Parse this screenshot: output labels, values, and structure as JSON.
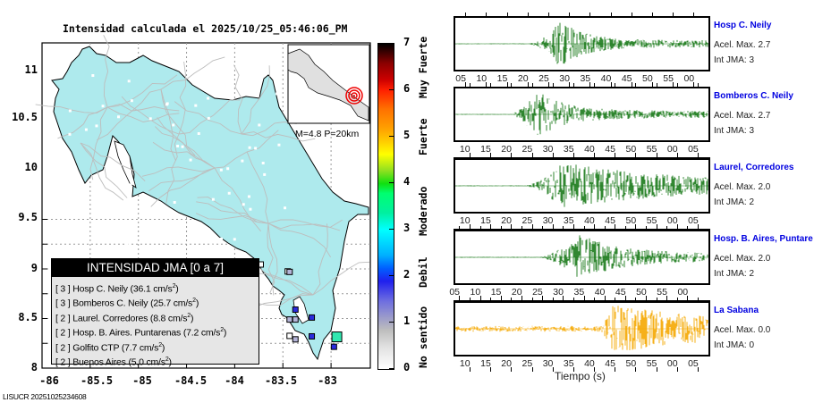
{
  "title": "Intensidad calculada el 2025/10/25_05:46:06_PM",
  "footer_id": "LISUCR 20251025234608",
  "map": {
    "y_ticks": [
      "11",
      "10.5",
      "10",
      "9.5",
      "9",
      "8.5",
      "8"
    ],
    "x_ticks": [
      "-86",
      "-85.5",
      "-85",
      "-84.5",
      "-84",
      "-83.5",
      "-83"
    ],
    "land_color": "#aeeaed",
    "inset_label": "M=4.8 P=20km",
    "stations_observed": [
      {
        "lon": -84.0,
        "lat": 10.08,
        "int": 1
      },
      {
        "lon": -83.98,
        "lat": 10.04,
        "int": 1
      },
      {
        "lon": -83.98,
        "lat": 9.97,
        "int": 0
      },
      {
        "lon": -83.95,
        "lat": 9.93,
        "int": 1
      },
      {
        "lon": -83.93,
        "lat": 9.9,
        "int": 0
      },
      {
        "lon": -83.87,
        "lat": 9.91,
        "int": 0
      },
      {
        "lon": -83.8,
        "lat": 9.96,
        "int": 0
      },
      {
        "lon": -83.78,
        "lat": 9.93,
        "int": 0
      },
      {
        "lon": -84.1,
        "lat": 9.9,
        "int": 0
      },
      {
        "lon": -83.73,
        "lat": 10.09,
        "int": 0
      },
      {
        "lon": -83.45,
        "lat": 9.95,
        "int": 0
      },
      {
        "lon": -83.43,
        "lat": 9.94,
        "int": 1
      },
      {
        "lon": -83.37,
        "lat": 9.18,
        "int": 2
      },
      {
        "lon": -83.43,
        "lat": 8.98,
        "int": 1
      },
      {
        "lon": -83.37,
        "lat": 8.98,
        "int": 1
      },
      {
        "lon": -83.2,
        "lat": 9.02,
        "int": 2
      },
      {
        "lon": -83.43,
        "lat": 8.65,
        "int": 0
      },
      {
        "lon": -83.37,
        "lat": 8.58,
        "int": 1
      },
      {
        "lon": -83.2,
        "lat": 8.64,
        "int": 2
      },
      {
        "lon": -82.97,
        "lat": 8.43,
        "int": 2
      },
      {
        "lon": -82.94,
        "lat": 8.63,
        "int": 3
      }
    ]
  },
  "legend": {
    "title": "INTENSIDAD JMA [0 a 7]",
    "items": [
      {
        "int": "[ 3 ]",
        "name": "Hosp C. Neily",
        "value": "(36.1 cm/s",
        "sup": "2",
        "close": ")"
      },
      {
        "int": "[ 3 ]",
        "name": "Bomberos C. Neily",
        "value": "(25.7 cm/s",
        "sup": "2",
        "close": ")"
      },
      {
        "int": "[ 2 ]",
        "name": "Laurel. Corredores",
        "value": "(8.8 cm/s",
        "sup": "2",
        "close": ")"
      },
      {
        "int": "[ 2 ]",
        "name": "Hosp. B. Aires. Puntarenas",
        "value": "(7.2 cm/s",
        "sup": "2",
        "close": ")"
      },
      {
        "int": "[ 2 ]",
        "name": "Golfito CTP",
        "value": "(7.7 cm/s",
        "sup": "2",
        "close": ")"
      },
      {
        "int": "[ 2 ]",
        "name": "Buenos Aires",
        "value": "(5.0 cm/s",
        "sup": "2",
        "close": ")"
      }
    ]
  },
  "colorbar": {
    "ticks": [
      "0",
      "1",
      "2",
      "3",
      "4",
      "5",
      "6",
      "7"
    ],
    "labels": [
      "No sentido",
      "Debil",
      "Moderado",
      "Fuerte",
      "Muy Fuerte"
    ]
  },
  "traces": [
    {
      "name": "Hosp C. Neily",
      "acel": "Acel. Max. 2.7",
      "int": "Int JMA: 3",
      "color": "#1a7a1a",
      "ticks": [
        "05",
        "10",
        "15",
        "20",
        "25",
        "30",
        "35",
        "40",
        "45",
        "50",
        "55",
        "00"
      ],
      "t0": 3,
      "onset": 20.5,
      "peak": 28,
      "decay": 6,
      "amp": 1.0,
      "noise": 0.02
    },
    {
      "name": "Bomberos C. Neily",
      "acel": "Acel. Max. 2.7",
      "int": "Int JMA: 3",
      "color": "#1a7a1a",
      "ticks": [
        "10",
        "15",
        "20",
        "25",
        "30",
        "35",
        "40",
        "45",
        "50",
        "55",
        "00",
        "05"
      ],
      "t0": 7,
      "onset": 20,
      "peak": 26.5,
      "decay": 7,
      "amp": 1.0,
      "noise": 0.02
    },
    {
      "name": "Laurel, Corredores",
      "acel": "Acel. Max. 2.0",
      "int": "Int JMA: 2",
      "color": "#1a7a1a",
      "ticks": [
        "10",
        "15",
        "20",
        "25",
        "30",
        "35",
        "40",
        "45",
        "50",
        "55",
        "00",
        "05"
      ],
      "t0": 7,
      "onset": 23.5,
      "peak": 33,
      "decay": 25,
      "amp": 1.0,
      "noise": 0.02
    },
    {
      "name": "Hosp. B. Aires, Puntare",
      "acel": "Acel. Max. 2.0",
      "int": "Int JMA: 2",
      "color": "#1a7a1a",
      "ticks": [
        "05",
        "10",
        "15",
        "20",
        "25",
        "30",
        "35",
        "40",
        "45",
        "50",
        "55",
        "00"
      ],
      "t0": 4.5,
      "onset": 24.5,
      "peak": 34,
      "decay": 10,
      "amp": 1.0,
      "noise": 0.02
    },
    {
      "name": "La Sabana",
      "acel": "Acel. Max. 0.0",
      "int": "Int JMA: 0",
      "color": "#f5a800",
      "ticks": [
        "10",
        "15",
        "20",
        "25",
        "30",
        "35",
        "40",
        "45",
        "50",
        "55",
        "00",
        "05"
      ],
      "t0": 7,
      "onset": 41,
      "peak": 45,
      "decay": 30,
      "amp": 1.0,
      "noise": 0.12
    }
  ],
  "x_axis_label": "Tiempo (s)"
}
